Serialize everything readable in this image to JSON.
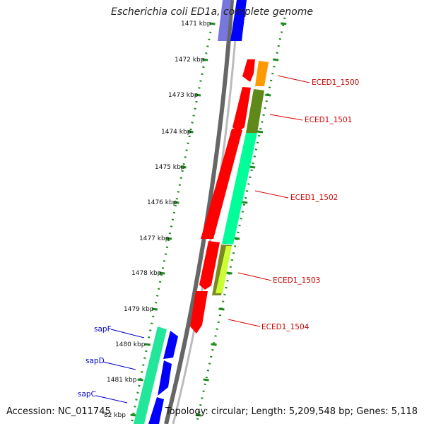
{
  "title": "Escherichia coli ED1a, complete genome",
  "footer": {
    "accession": "Accession: NC_011745",
    "summary": "Topology: circular; Length: 5,209,548 bp; Genes: 5,118"
  },
  "ticks": [
    "1471 kbp",
    "1472 kbp",
    "1473 kbp",
    "1474 kbp",
    "1475 kbp",
    "1476 kbp",
    "1477 kbp",
    "1478 kbp",
    "1479 kbp",
    "1480 kbp",
    "1481 kbp",
    "82 kbp"
  ],
  "gene_labels": [
    {
      "text": "ECED1_1500",
      "color": "#cc0000"
    },
    {
      "text": "ECED1_1501",
      "color": "#cc0000"
    },
    {
      "text": "ECED1_1502",
      "color": "#cc0000"
    },
    {
      "text": "ECED1_1503",
      "color": "#cc0000"
    },
    {
      "text": "ECED1_1504",
      "color": "#cc0000"
    },
    {
      "text": "sapF",
      "color": "#0000cc"
    },
    {
      "text": "sapD",
      "color": "#0000cc"
    },
    {
      "text": "sapC",
      "color": "#0000cc"
    }
  ],
  "colors": {
    "cds": "#ff0000",
    "sap_cds": "#0000ff",
    "orthologs": "#00ff99",
    "backbone": "#888888",
    "ticks": "#228b22"
  }
}
